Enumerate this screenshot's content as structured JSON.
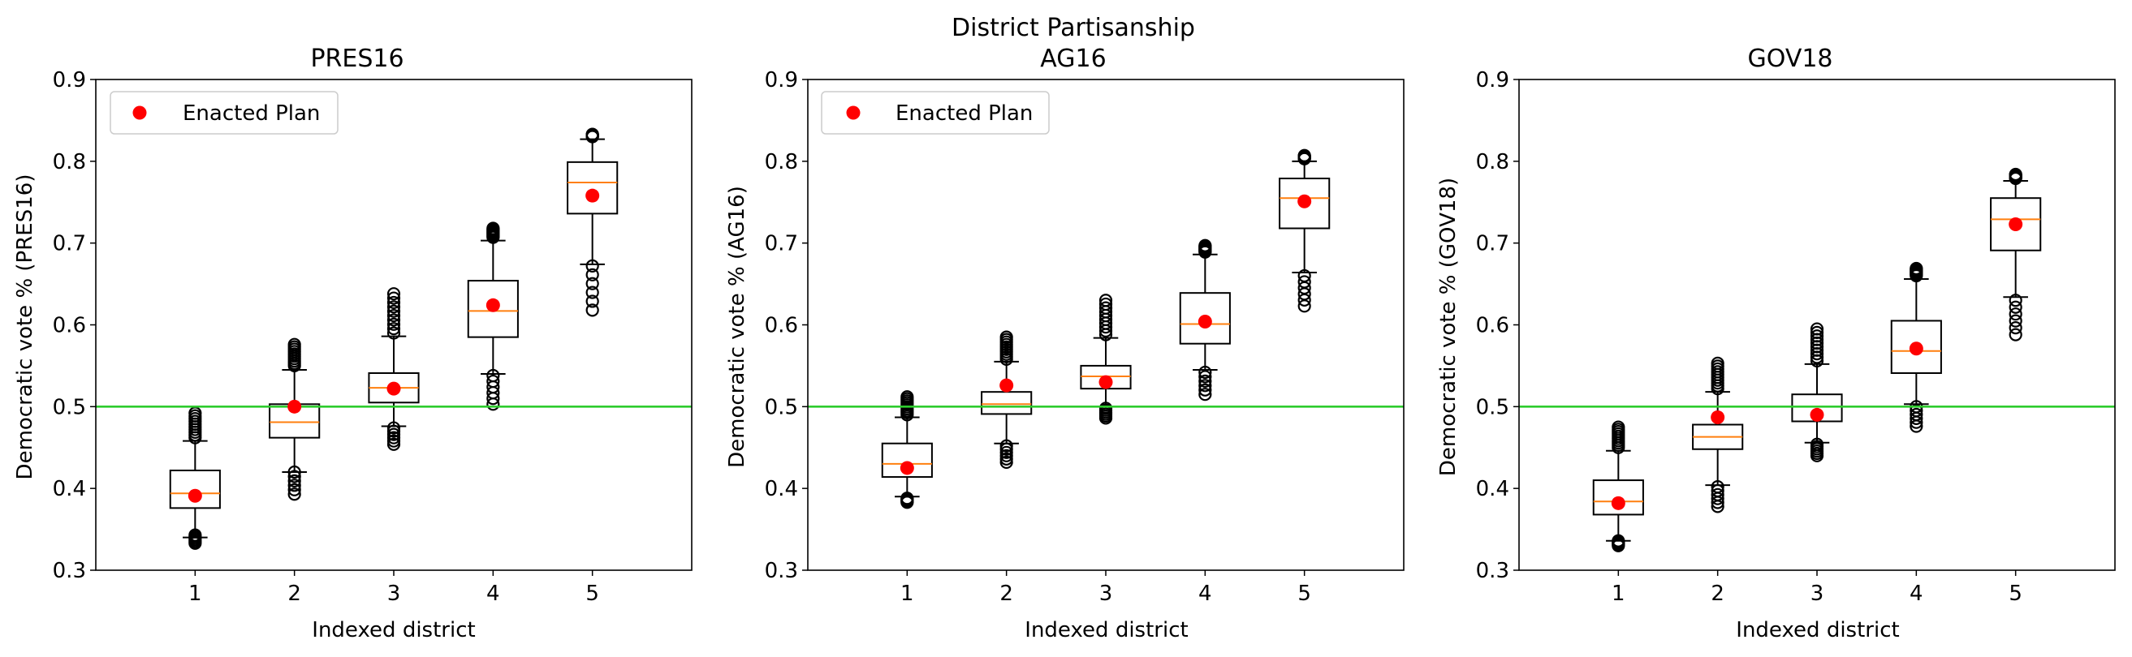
{
  "figure": {
    "suptitle": "District Partisanship"
  },
  "colors": {
    "box": "#000000",
    "median": "#ff7f0e",
    "enacted": "#ff0000",
    "threshold": "#2ecc2e"
  },
  "chart_data": [
    {
      "type": "box",
      "title": "PRES16",
      "xlabel": "Indexed district",
      "ylabel": "Democratic vote % (PRES16)",
      "categories": [
        "1",
        "2",
        "3",
        "4",
        "5"
      ],
      "ylim": [
        0.3,
        0.9
      ],
      "yticks": [
        "0.3",
        "0.4",
        "0.5",
        "0.6",
        "0.7",
        "0.8",
        "0.9"
      ],
      "threshold": 0.5,
      "legend": {
        "label": "Enacted Plan",
        "position": "upper-left"
      },
      "boxes": [
        {
          "whislo": 0.34,
          "q1": 0.376,
          "med": 0.394,
          "q3": 0.422,
          "whishi": 0.458,
          "flier_lo": [
            0.333,
            0.343
          ],
          "flier_hi": [
            0.462,
            0.492
          ]
        },
        {
          "whislo": 0.42,
          "q1": 0.462,
          "med": 0.481,
          "q3": 0.503,
          "whishi": 0.545,
          "flier_lo": [
            0.393,
            0.42
          ],
          "flier_hi": [
            0.55,
            0.576
          ]
        },
        {
          "whislo": 0.476,
          "q1": 0.505,
          "med": 0.523,
          "q3": 0.541,
          "whishi": 0.586,
          "flier_lo": [
            0.454,
            0.474
          ],
          "flier_hi": [
            0.59,
            0.638
          ]
        },
        {
          "whislo": 0.54,
          "q1": 0.585,
          "med": 0.617,
          "q3": 0.654,
          "whishi": 0.703,
          "flier_lo": [
            0.503,
            0.538
          ],
          "flier_hi": [
            0.707,
            0.718
          ]
        },
        {
          "whislo": 0.674,
          "q1": 0.736,
          "med": 0.774,
          "q3": 0.799,
          "whishi": 0.827,
          "flier_lo": [
            0.618,
            0.672
          ],
          "flier_hi": [
            0.83,
            0.833
          ]
        }
      ],
      "enacted": [
        0.391,
        0.5,
        0.522,
        0.624,
        0.758
      ]
    },
    {
      "type": "box",
      "title": "AG16",
      "xlabel": "Indexed district",
      "ylabel": "Democratic vote % (AG16)",
      "categories": [
        "1",
        "2",
        "3",
        "4",
        "5"
      ],
      "ylim": [
        0.3,
        0.9
      ],
      "yticks": [
        "0.3",
        "0.4",
        "0.5",
        "0.6",
        "0.7",
        "0.8",
        "0.9"
      ],
      "threshold": 0.5,
      "legend": {
        "label": "Enacted Plan",
        "position": "upper-left"
      },
      "boxes": [
        {
          "whislo": 0.39,
          "q1": 0.414,
          "med": 0.43,
          "q3": 0.455,
          "whishi": 0.487,
          "flier_lo": [
            0.383,
            0.388
          ],
          "flier_hi": [
            0.49,
            0.512
          ]
        },
        {
          "whislo": 0.455,
          "q1": 0.491,
          "med": 0.503,
          "q3": 0.518,
          "whishi": 0.555,
          "flier_lo": [
            0.432,
            0.452
          ],
          "flier_hi": [
            0.558,
            0.585
          ]
        },
        {
          "whislo": 0.5,
          "q1": 0.522,
          "med": 0.537,
          "q3": 0.55,
          "whishi": 0.584,
          "flier_lo": [
            0.486,
            0.498
          ],
          "flier_hi": [
            0.588,
            0.63
          ]
        },
        {
          "whislo": 0.545,
          "q1": 0.577,
          "med": 0.601,
          "q3": 0.639,
          "whishi": 0.686,
          "flier_lo": [
            0.515,
            0.542
          ],
          "flier_hi": [
            0.689,
            0.697
          ]
        },
        {
          "whislo": 0.664,
          "q1": 0.718,
          "med": 0.755,
          "q3": 0.779,
          "whishi": 0.8,
          "flier_lo": [
            0.623,
            0.66
          ],
          "flier_hi": [
            0.803,
            0.807
          ]
        }
      ],
      "enacted": [
        0.425,
        0.526,
        0.53,
        0.604,
        0.751
      ]
    },
    {
      "type": "box",
      "title": "GOV18",
      "xlabel": "Indexed district",
      "ylabel": "Democratic vote % (GOV18)",
      "categories": [
        "1",
        "2",
        "3",
        "4",
        "5"
      ],
      "ylim": [
        0.3,
        0.9
      ],
      "yticks": [
        "0.3",
        "0.4",
        "0.5",
        "0.6",
        "0.7",
        "0.8",
        "0.9"
      ],
      "threshold": 0.5,
      "legend": null,
      "boxes": [
        {
          "whislo": 0.336,
          "q1": 0.368,
          "med": 0.384,
          "q3": 0.41,
          "whishi": 0.446,
          "flier_lo": [
            0.33,
            0.336
          ],
          "flier_hi": [
            0.45,
            0.475
          ]
        },
        {
          "whislo": 0.404,
          "q1": 0.448,
          "med": 0.463,
          "q3": 0.478,
          "whishi": 0.518,
          "flier_lo": [
            0.378,
            0.402
          ],
          "flier_hi": [
            0.522,
            0.553
          ]
        },
        {
          "whislo": 0.456,
          "q1": 0.482,
          "med": 0.5,
          "q3": 0.515,
          "whishi": 0.552,
          "flier_lo": [
            0.44,
            0.454
          ],
          "flier_hi": [
            0.556,
            0.595
          ]
        },
        {
          "whislo": 0.503,
          "q1": 0.541,
          "med": 0.568,
          "q3": 0.605,
          "whishi": 0.656,
          "flier_lo": [
            0.476,
            0.5
          ],
          "flier_hi": [
            0.66,
            0.669
          ]
        },
        {
          "whislo": 0.634,
          "q1": 0.691,
          "med": 0.729,
          "q3": 0.755,
          "whishi": 0.776,
          "flier_lo": [
            0.588,
            0.63
          ],
          "flier_hi": [
            0.779,
            0.784
          ]
        }
      ],
      "enacted": [
        0.382,
        0.487,
        0.49,
        0.571,
        0.723
      ]
    }
  ]
}
